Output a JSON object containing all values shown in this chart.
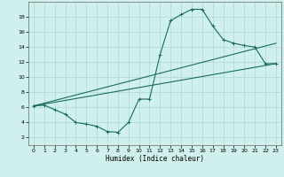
{
  "xlabel": "Humidex (Indice chaleur)",
  "bg_color": "#cff0ec",
  "grid_color": "#aad8d0",
  "line_color": "#1a6b5a",
  "xlim": [
    -0.5,
    23.5
  ],
  "ylim": [
    1,
    20
  ],
  "xticks": [
    0,
    1,
    2,
    3,
    4,
    5,
    6,
    7,
    8,
    9,
    10,
    11,
    12,
    13,
    14,
    15,
    16,
    17,
    18,
    19,
    20,
    21,
    22,
    23
  ],
  "yticks": [
    2,
    4,
    6,
    8,
    10,
    12,
    14,
    16,
    18
  ],
  "series1_x": [
    0,
    1,
    2,
    3,
    4,
    5,
    6,
    7,
    8,
    9,
    10,
    11,
    12,
    13,
    14,
    15,
    16,
    17,
    18,
    19,
    20,
    21,
    22,
    23
  ],
  "series1_y": [
    6.2,
    6.3,
    5.7,
    5.1,
    4.0,
    3.8,
    3.5,
    2.8,
    2.7,
    4.0,
    7.1,
    7.1,
    13.0,
    17.5,
    18.3,
    19.0,
    19.0,
    16.8,
    15.0,
    14.5,
    14.2,
    14.0,
    11.8,
    11.8
  ],
  "series2_x": [
    0,
    23
  ],
  "series2_y": [
    6.2,
    11.8
  ],
  "series4_x": [
    0,
    23
  ],
  "series4_y": [
    6.2,
    14.5
  ]
}
